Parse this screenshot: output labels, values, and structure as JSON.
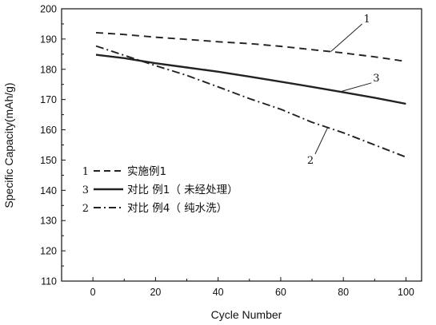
{
  "chart_data": {
    "type": "line",
    "xlabel": "Cycle Number",
    "ylabel": "Specific Capacity(mAh/g)",
    "xlim": [
      -10,
      105
    ],
    "ylim": [
      110,
      200
    ],
    "x_ticks": [
      0,
      20,
      40,
      60,
      80,
      100
    ],
    "y_ticks": [
      110,
      120,
      130,
      140,
      150,
      160,
      170,
      180,
      190,
      200
    ],
    "x_tick_labels": [
      "0",
      "20",
      "40",
      "60",
      "80",
      "100"
    ],
    "y_tick_labels": [
      "110",
      "120",
      "130",
      "140",
      "150",
      "160",
      "170",
      "180",
      "190",
      "200"
    ],
    "grid": false,
    "legend_position": "lower-left",
    "series": [
      {
        "name": "实施例1",
        "legend_number": "1",
        "line_style": "dashed",
        "x": [
          1,
          10,
          20,
          30,
          40,
          50,
          60,
          70,
          80,
          90,
          100
        ],
        "y": [
          192.1,
          191.5,
          190.6,
          189.9,
          189.1,
          188.5,
          187.6,
          186.5,
          185.4,
          184.1,
          182.6
        ]
      },
      {
        "name": "对比 例1（ 未经处理）",
        "legend_number": "3",
        "line_style": "solid",
        "x": [
          1,
          10,
          20,
          30,
          40,
          50,
          60,
          70,
          80,
          90,
          100
        ],
        "y": [
          184.8,
          183.7,
          182.0,
          180.6,
          179.2,
          177.6,
          175.9,
          174.2,
          172.4,
          170.6,
          168.6
        ]
      },
      {
        "name": "对比 例4（ 纯水洗）",
        "legend_number": "2",
        "line_style": "dash-dot",
        "x": [
          1,
          10,
          20,
          30,
          40,
          50,
          60,
          70,
          80,
          90,
          100
        ],
        "y": [
          187.7,
          184.6,
          181.2,
          178.0,
          174.2,
          170.3,
          166.8,
          162.5,
          159.0,
          155.0,
          151.0
        ]
      }
    ],
    "annotations": [
      {
        "text": "1",
        "series": 0,
        "at_x": 76,
        "text_at": [
          86,
          195
        ]
      },
      {
        "text": "3",
        "series": 1,
        "at_x": 79,
        "text_at": [
          89,
          175.5
        ]
      },
      {
        "text": "2",
        "series": 2,
        "at_x": 75,
        "text_at": [
          71,
          152
        ]
      }
    ]
  }
}
